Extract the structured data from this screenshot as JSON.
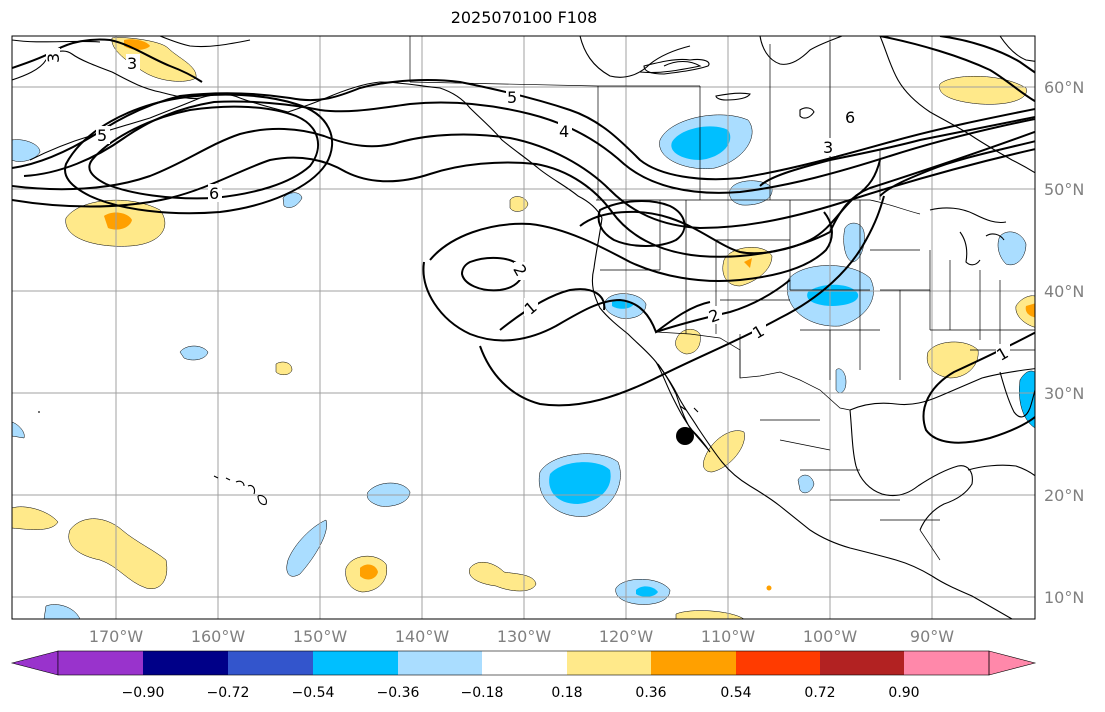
{
  "title": "2025070100 F108",
  "map": {
    "lon_ticks": [
      "170°W",
      "160°W",
      "150°W",
      "140°W",
      "130°W",
      "120°W",
      "110°W",
      "100°W",
      "90°W"
    ],
    "lat_ticks": [
      "60°N",
      "50°N",
      "40°N",
      "30°N",
      "20°N",
      "10°N"
    ],
    "extent": {
      "lon_min": -180,
      "lon_max": -80,
      "lat_min": 8,
      "lat_max": 65
    },
    "contour_values": [
      "3",
      "5",
      "6",
      "5",
      "4",
      "6",
      "3",
      "2",
      "1",
      "1",
      "2",
      "1",
      "1"
    ],
    "marker": {
      "name": "point-marker",
      "lon": -114.8,
      "lat": 25.8
    }
  },
  "colorbar": {
    "labels": [
      "−0.90",
      "−0.72",
      "−0.54",
      "−0.36",
      "−0.18",
      "0.18",
      "0.36",
      "0.54",
      "0.72",
      "0.90"
    ],
    "colors": [
      "#9933cc",
      "#000088",
      "#3355cc",
      "#00bfff",
      "#aaddff",
      "#ffffff",
      "#ffe98a",
      "#ffa000",
      "#ff3b00",
      "#b22222",
      "#ff88aa"
    ]
  },
  "shading_colors": {
    "neg_light": "#aaddff",
    "neg_mid": "#00bfff",
    "pos_light": "#ffe98a",
    "pos_mid": "#ffa000"
  }
}
